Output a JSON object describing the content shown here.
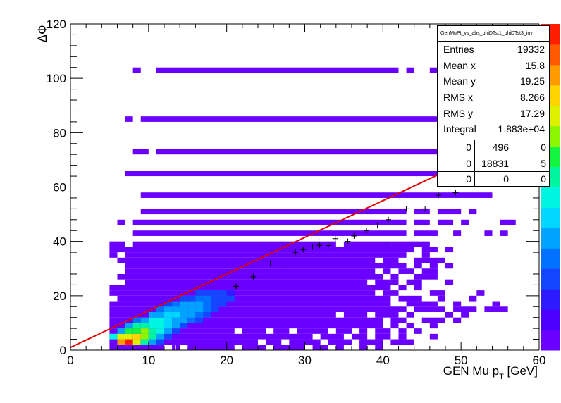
{
  "chart_data": {
    "type": "heatmap",
    "title": "",
    "xlabel": "GEN Mu p_T [GeV]",
    "ylabel": "ΔΦ",
    "xlim": [
      0,
      60
    ],
    "ylim": [
      0,
      120
    ],
    "x_ticks": [
      "0",
      "10",
      "20",
      "30",
      "40",
      "50",
      "60"
    ],
    "y_ticks": [
      "0",
      "20",
      "40",
      "60",
      "80",
      "100",
      "120"
    ],
    "colorbar_palette": "rainbow (violet → blue → cyan → green → yellow → red)",
    "fit_line": {
      "color": "#e00000",
      "points": [
        [
          0,
          1
        ],
        [
          60,
          82
        ]
      ]
    },
    "profile_points": [
      [
        21.2,
        23.5
      ],
      [
        23.4,
        27
      ],
      [
        25.6,
        32
      ],
      [
        27.2,
        31
      ],
      [
        28.8,
        36
      ],
      [
        29.8,
        37
      ],
      [
        31,
        38
      ],
      [
        31.9,
        38.6
      ],
      [
        33,
        38.5
      ],
      [
        33.9,
        41
      ],
      [
        35.5,
        40
      ],
      [
        36.3,
        42
      ],
      [
        37.9,
        44
      ],
      [
        39.3,
        46
      ],
      [
        40.7,
        48
      ],
      [
        43,
        52
      ],
      [
        45.4,
        52
      ],
      [
        47.1,
        57
      ],
      [
        49.3,
        58
      ],
      [
        51.2,
        62
      ],
      [
        53.8,
        63
      ],
      [
        56.4,
        66
      ]
    ],
    "cell_width": 1.0,
    "cell_height": 2.0,
    "band_rows": [
      {
        "y": 103,
        "x": [
          [
            8,
            9
          ],
          [
            11,
            42
          ],
          [
            43,
            44
          ],
          [
            46,
            47
          ],
          [
            52,
            53
          ]
        ]
      },
      {
        "y": 85,
        "x": [
          [
            7,
            8
          ],
          [
            9,
            52
          ],
          [
            54,
            55
          ]
        ]
      },
      {
        "y": 73,
        "x": [
          [
            8,
            10
          ],
          [
            11,
            54
          ]
        ]
      },
      {
        "y": 65,
        "x": [
          [
            7,
            53
          ]
        ]
      },
      {
        "y": 57,
        "x": [
          [
            9,
            54
          ]
        ]
      },
      {
        "y": 51,
        "x": [
          [
            9,
            43
          ],
          [
            44,
            46
          ],
          [
            47,
            50
          ],
          [
            51,
            52
          ]
        ]
      },
      {
        "y": 47,
        "x": [
          [
            6,
            7
          ],
          [
            8,
            43
          ],
          [
            44,
            46
          ],
          [
            47,
            49
          ],
          [
            50,
            51
          ],
          [
            55,
            57
          ]
        ]
      },
      {
        "y": 43,
        "x": [
          [
            8,
            43
          ],
          [
            44,
            47
          ],
          [
            49,
            50
          ],
          [
            53,
            54
          ],
          [
            55,
            56
          ]
        ]
      },
      {
        "y": 39,
        "x": [
          [
            5,
            7
          ],
          [
            8,
            34
          ],
          [
            35,
            41
          ],
          [
            41,
            46
          ]
        ]
      }
    ],
    "dense_rows": [
      {
        "y": 37,
        "x": [
          [
            5,
            44
          ],
          [
            45,
            47
          ],
          [
            48,
            49
          ]
        ]
      },
      {
        "y": 35,
        "x": [
          [
            5,
            6
          ],
          [
            7,
            40
          ],
          [
            40,
            43
          ],
          [
            45,
            46
          ]
        ]
      },
      {
        "y": 33,
        "x": [
          [
            6,
            39
          ],
          [
            40,
            42
          ],
          [
            44,
            48
          ]
        ]
      },
      {
        "y": 31,
        "x": [
          [
            7,
            43
          ],
          [
            44,
            45
          ],
          [
            46,
            47
          ],
          [
            48,
            49
          ]
        ]
      },
      {
        "y": 29,
        "x": [
          [
            7,
            39
          ],
          [
            40,
            41
          ],
          [
            42,
            44
          ],
          [
            45,
            47
          ]
        ]
      },
      {
        "y": 27,
        "x": [
          [
            6,
            40
          ],
          [
            41,
            42
          ],
          [
            44,
            47
          ]
        ]
      },
      {
        "y": 25,
        "x": [
          [
            7,
            38
          ],
          [
            39,
            42
          ],
          [
            43,
            45
          ],
          [
            48,
            49
          ]
        ]
      },
      {
        "y": 23,
        "x": [
          [
            5,
            41
          ],
          [
            42,
            43
          ],
          [
            44,
            45
          ]
        ]
      },
      {
        "y": 21,
        "x": [
          [
            5,
            39
          ],
          [
            40,
            42
          ],
          [
            46,
            48
          ],
          [
            52,
            53
          ]
        ]
      },
      {
        "y": 19,
        "x": [
          [
            6,
            41
          ],
          [
            42,
            45
          ],
          [
            47,
            48
          ],
          [
            51,
            52
          ]
        ]
      },
      {
        "y": 17,
        "x": [
          [
            5,
            41
          ],
          [
            43,
            47
          ],
          [
            49,
            50
          ],
          [
            54,
            55
          ]
        ]
      },
      {
        "y": 15,
        "x": [
          [
            5,
            43
          ],
          [
            44,
            48
          ],
          [
            49,
            52
          ],
          [
            53,
            56
          ]
        ]
      },
      {
        "y": 13,
        "x": [
          [
            5,
            34
          ],
          [
            35,
            38
          ],
          [
            39,
            42
          ],
          [
            43,
            44
          ],
          [
            48,
            49
          ],
          [
            50,
            51
          ]
        ]
      },
      {
        "y": 11,
        "x": [
          [
            5,
            40
          ],
          [
            41,
            43
          ],
          [
            45,
            48
          ],
          [
            49,
            50
          ]
        ]
      },
      {
        "y": 9,
        "x": [
          [
            5,
            40
          ],
          [
            41,
            42
          ],
          [
            43,
            44
          ],
          [
            46,
            47
          ]
        ]
      },
      {
        "y": 7,
        "x": [
          [
            5,
            21
          ],
          [
            22,
            25
          ],
          [
            26,
            28
          ],
          [
            29,
            33
          ],
          [
            34,
            36
          ],
          [
            37,
            38
          ],
          [
            39,
            41
          ],
          [
            42,
            43
          ],
          [
            44,
            45
          ]
        ]
      },
      {
        "y": 5,
        "x": [
          [
            5,
            31
          ],
          [
            32,
            35
          ],
          [
            36,
            38
          ],
          [
            39,
            41
          ],
          [
            42,
            43
          ],
          [
            46,
            47
          ]
        ]
      },
      {
        "y": 3,
        "x": [
          [
            5,
            24
          ],
          [
            25,
            27
          ],
          [
            28,
            32
          ],
          [
            33,
            36
          ],
          [
            37,
            40
          ],
          [
            41,
            44
          ]
        ]
      },
      {
        "y": 1,
        "x": [
          [
            5,
            12
          ],
          [
            13,
            13.4
          ],
          [
            13.5,
            14
          ],
          [
            15,
            21
          ],
          [
            22,
            25
          ],
          [
            26,
            30
          ],
          [
            31,
            33
          ],
          [
            34,
            35
          ],
          [
            37,
            38
          ],
          [
            39,
            40
          ]
        ]
      }
    ],
    "hot_cells": [
      [
        6,
        3,
        0.85
      ],
      [
        7,
        3,
        1.0
      ],
      [
        8,
        3,
        0.75
      ],
      [
        9,
        3,
        0.55
      ],
      [
        10,
        3,
        0.35
      ],
      [
        11,
        3,
        0.2
      ],
      [
        5,
        5,
        0.45
      ],
      [
        6,
        5,
        0.7
      ],
      [
        7,
        5,
        0.75
      ],
      [
        8,
        5,
        0.8
      ],
      [
        9,
        5,
        0.65
      ],
      [
        10,
        5,
        0.55
      ],
      [
        11,
        5,
        0.35
      ],
      [
        12,
        5,
        0.2
      ],
      [
        6,
        7,
        0.35
      ],
      [
        7,
        7,
        0.6
      ],
      [
        8,
        7,
        0.6
      ],
      [
        9,
        7,
        0.65
      ],
      [
        10,
        7,
        0.55
      ],
      [
        11,
        7,
        0.45
      ],
      [
        12,
        7,
        0.3
      ],
      [
        13,
        7,
        0.2
      ],
      [
        7,
        9,
        0.35
      ],
      [
        8,
        9,
        0.5
      ],
      [
        9,
        9,
        0.55
      ],
      [
        10,
        9,
        0.45
      ],
      [
        11,
        9,
        0.45
      ],
      [
        12,
        9,
        0.4
      ],
      [
        13,
        9,
        0.3
      ],
      [
        14,
        9,
        0.2
      ],
      [
        8,
        11,
        0.25
      ],
      [
        9,
        11,
        0.35
      ],
      [
        10,
        11,
        0.45
      ],
      [
        11,
        11,
        0.45
      ],
      [
        12,
        11,
        0.4
      ],
      [
        13,
        11,
        0.35
      ],
      [
        14,
        11,
        0.3
      ],
      [
        15,
        11,
        0.25
      ],
      [
        16,
        11,
        0.2
      ],
      [
        10,
        13,
        0.3
      ],
      [
        11,
        13,
        0.35
      ],
      [
        12,
        13,
        0.4
      ],
      [
        13,
        13,
        0.4
      ],
      [
        14,
        13,
        0.35
      ],
      [
        15,
        13,
        0.3
      ],
      [
        16,
        13,
        0.25
      ],
      [
        17,
        13,
        0.2
      ],
      [
        11,
        15,
        0.25
      ],
      [
        12,
        15,
        0.3
      ],
      [
        13,
        15,
        0.35
      ],
      [
        14,
        15,
        0.35
      ],
      [
        15,
        15,
        0.35
      ],
      [
        16,
        15,
        0.3
      ],
      [
        17,
        15,
        0.25
      ],
      [
        18,
        15,
        0.2
      ],
      [
        12,
        17,
        0.2
      ],
      [
        13,
        17,
        0.25
      ],
      [
        14,
        17,
        0.3
      ],
      [
        15,
        17,
        0.3
      ],
      [
        16,
        17,
        0.3
      ],
      [
        17,
        17,
        0.25
      ],
      [
        18,
        17,
        0.22
      ],
      [
        19,
        17,
        0.18
      ],
      [
        14,
        19,
        0.2
      ],
      [
        15,
        19,
        0.22
      ],
      [
        16,
        19,
        0.25
      ],
      [
        17,
        19,
        0.25
      ],
      [
        18,
        19,
        0.22
      ],
      [
        19,
        19,
        0.2
      ],
      [
        20,
        19,
        0.18
      ],
      [
        16,
        21,
        0.18
      ],
      [
        17,
        21,
        0.2
      ],
      [
        18,
        21,
        0.2
      ],
      [
        19,
        21,
        0.18
      ],
      [
        20,
        21,
        0.15
      ]
    ]
  },
  "stats": {
    "title": "GenMuPt_vs_abs_phiDTst1_phiDTst3_inv",
    "rows": [
      {
        "label": "Entries",
        "value": "19332"
      },
      {
        "label": "Mean x",
        "value": "15.8"
      },
      {
        "label": "Mean y",
        "value": "19.25"
      },
      {
        "label": "RMS x",
        "value": "8.266"
      },
      {
        "label": "RMS y",
        "value": "17.29"
      },
      {
        "label": "Integral",
        "value": "1.883e+04"
      }
    ],
    "grid": [
      [
        "0",
        "496",
        "0"
      ],
      [
        "0",
        "18831",
        "5"
      ],
      [
        "0",
        "0",
        "0"
      ]
    ]
  },
  "colors": {
    "base": "#6a00ff",
    "fit": "#e00000"
  }
}
